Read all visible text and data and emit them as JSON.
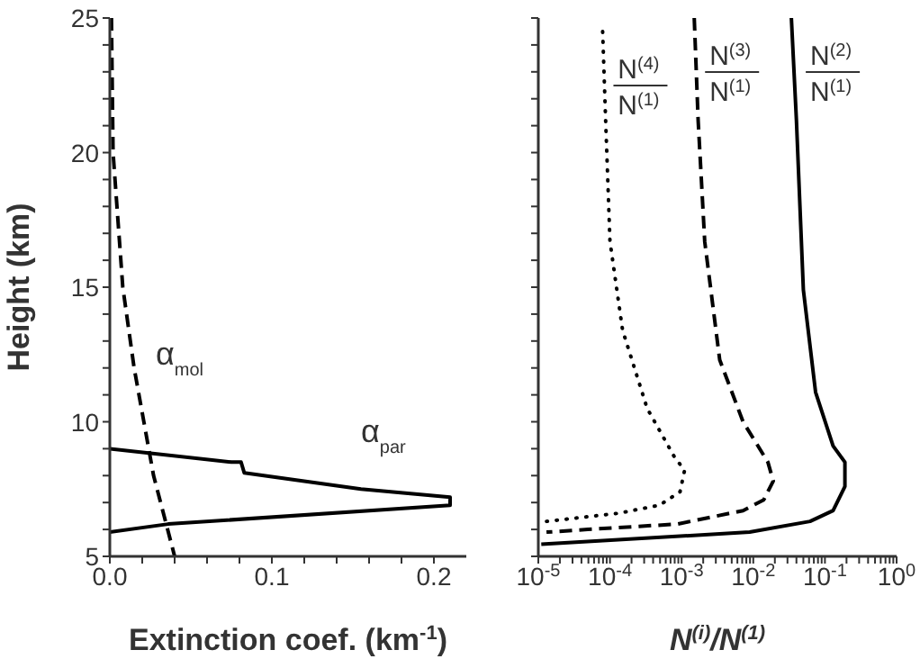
{
  "chart_data": [
    {
      "type": "line",
      "xlabel": "Extinction coef. (km$^{-1}$)",
      "ylabel": "Height (km)",
      "xlim": [
        0,
        0.22
      ],
      "xticks": [
        {
          "value": 0,
          "label": "0.0"
        },
        {
          "value": 0.02,
          "label": null
        },
        {
          "value": 0.04,
          "label": null
        },
        {
          "value": 0.06,
          "label": null
        },
        {
          "value": 0.08,
          "label": null
        },
        0.1,
        {
          "value": 0.12,
          "label": null
        },
        {
          "value": 0.14,
          "label": null
        },
        {
          "value": 0.16,
          "label": null
        },
        {
          "value": 0.18,
          "label": null
        },
        0.2
      ],
      "ylim": [
        5,
        25
      ],
      "yticks": [
        5,
        {
          "value": 6,
          "label": null
        },
        {
          "value": 7,
          "label": null
        },
        {
          "value": 8,
          "label": null
        },
        {
          "value": 9,
          "label": null
        },
        10,
        {
          "value": 11,
          "label": null
        },
        {
          "value": 12,
          "label": null
        },
        {
          "value": 13,
          "label": null
        },
        {
          "value": 14,
          "label": null
        },
        15,
        {
          "value": 16,
          "label": null
        },
        {
          "value": 17,
          "label": null
        },
        {
          "value": 18,
          "label": null
        },
        {
          "value": 19,
          "label": null
        },
        20,
        {
          "value": 21,
          "label": null
        },
        {
          "value": 22,
          "label": null
        },
        {
          "value": 23,
          "label": null
        },
        {
          "value": 24,
          "label": null
        },
        25
      ],
      "grid": false,
      "legend": false,
      "marker": "none",
      "series": [
        {
          "name": "α$_{mol}$",
          "color": "#000000",
          "line_style": "dashed",
          "x": [
            0.001,
            0.002,
            0.008,
            0.015,
            0.021,
            0.027,
            0.04
          ],
          "values": [
            25,
            20,
            15,
            12,
            10,
            8,
            5
          ]
        },
        {
          "name": "α$_{par}$",
          "color": "#000000",
          "line_style": "solid",
          "x": [
            0,
            0.075,
            0.081,
            0.083,
            0.155,
            0.21,
            0.21,
            0.036,
            0
          ],
          "values": [
            9.0,
            8.5,
            8.5,
            8.1,
            7.5,
            7.2,
            6.9,
            6.2,
            5.9
          ]
        }
      ]
    },
    {
      "type": "line",
      "xlabel": "N$^{(i)}$/N$^{(1)}$",
      "log": "x",
      "xlim": [
        1e-05,
        1
      ],
      "xticks": [
        {
          "value": 1e-05,
          "label": "10$^{-5}$"
        },
        {
          "value": 2e-05,
          "label": null
        },
        {
          "value": 3e-05,
          "label": null
        },
        {
          "value": 4e-05,
          "label": null
        },
        {
          "value": 5e-05,
          "label": null
        },
        {
          "value": 6e-05,
          "label": null
        },
        {
          "value": 7e-05,
          "label": null
        },
        {
          "value": 8e-05,
          "label": null
        },
        {
          "value": 9e-05,
          "label": null
        },
        {
          "value": 0.0001,
          "label": "10$^{-4}$"
        },
        {
          "value": 0.0002,
          "label": null
        },
        {
          "value": 0.0003,
          "label": null
        },
        {
          "value": 0.0004,
          "label": null
        },
        {
          "value": 0.0005,
          "label": null
        },
        {
          "value": 0.0006,
          "label": null
        },
        {
          "value": 0.0007,
          "label": null
        },
        {
          "value": 0.0008,
          "label": null
        },
        {
          "value": 0.0009,
          "label": null
        },
        {
          "value": 0.001,
          "label": "10$^{-3}$"
        },
        {
          "value": 0.002,
          "label": null
        },
        {
          "value": 0.003,
          "label": null
        },
        {
          "value": 0.004,
          "label": null
        },
        {
          "value": 0.005,
          "label": null
        },
        {
          "value": 0.006,
          "label": null
        },
        {
          "value": 0.007,
          "label": null
        },
        {
          "value": 0.008,
          "label": null
        },
        {
          "value": 0.009,
          "label": null
        },
        {
          "value": 0.01,
          "label": "10$^{-2}$"
        },
        {
          "value": 0.02,
          "label": null
        },
        {
          "value": 0.03,
          "label": null
        },
        {
          "value": 0.04,
          "label": null
        },
        {
          "value": 0.05,
          "label": null
        },
        {
          "value": 0.06,
          "label": null
        },
        {
          "value": 0.07,
          "label": null
        },
        {
          "value": 0.08,
          "label": null
        },
        {
          "value": 0.09,
          "label": null
        },
        {
          "value": 0.1,
          "label": "10$^{-1}$"
        },
        {
          "value": 0.2,
          "label": null
        },
        {
          "value": 0.3,
          "label": null
        },
        {
          "value": 0.4,
          "label": null
        },
        {
          "value": 0.5,
          "label": null
        },
        {
          "value": 0.6,
          "label": null
        },
        {
          "value": 0.7,
          "label": null
        },
        {
          "value": 0.8,
          "label": null
        },
        {
          "value": 0.9,
          "label": null
        },
        {
          "value": 1,
          "label": "10$^{0}$"
        }
      ],
      "ylim": [
        5,
        25
      ],
      "yticks": [
        5,
        {
          "value": 6,
          "label": null
        },
        {
          "value": 7,
          "label": null
        },
        {
          "value": 8,
          "label": null
        },
        {
          "value": 9,
          "label": null
        },
        10,
        {
          "value": 11,
          "label": null
        },
        {
          "value": 12,
          "label": null
        },
        {
          "value": 13,
          "label": null
        },
        {
          "value": 14,
          "label": null
        },
        15,
        {
          "value": 16,
          "label": null
        },
        {
          "value": 17,
          "label": null
        },
        {
          "value": 18,
          "label": null
        },
        {
          "value": 19,
          "label": null
        },
        20,
        {
          "value": 21,
          "label": null
        },
        {
          "value": 22,
          "label": null
        },
        {
          "value": 23,
          "label": null
        },
        {
          "value": 24,
          "label": null
        },
        25
      ],
      "tick_labels": "x",
      "grid": false,
      "legend": false,
      "marker": "none",
      "series": [
        {
          "name": "N$^{(4)}$ N$^{(1)}$",
          "color": "#000000",
          "line_style": "dotted",
          "x": [
            7.9e-05,
            8.7e-05,
            0.0001,
            0.00015,
            0.00033,
            0.00079,
            0.0011,
            0.00095,
            0.00049,
            0.00013,
            1.3e-05
          ],
          "values": [
            24.5,
            21.2,
            16.7,
            13.4,
            10.5,
            8.7,
            8.2,
            7.4,
            6.9,
            6.6,
            6.3
          ]
        },
        {
          "name": "N$^{(3)}$ N$^{(1)}$",
          "color": "#000000",
          "line_style": "dashed",
          "x": [
            0.0015,
            0.0017,
            0.0021,
            0.0034,
            0.0072,
            0.016,
            0.019,
            0.014,
            0.0072,
            0.00087,
            4.9e-05,
            1.3e-05
          ],
          "values": [
            25,
            21.2,
            16.7,
            12.3,
            10.0,
            8.5,
            7.8,
            7.1,
            6.7,
            6.2,
            6.0,
            5.9
          ]
        },
        {
          "name": "N$^{(2)}$ N$^{(1)}$",
          "color": "#000000",
          "line_style": "solid",
          "x": [
            0.034,
            0.04,
            0.05,
            0.074,
            0.13,
            0.19,
            0.19,
            0.13,
            0.062,
            0.0089,
            1.1e-05
          ],
          "values": [
            25,
            21.2,
            14.9,
            11.1,
            9.1,
            8.5,
            7.6,
            6.7,
            6.3,
            5.9,
            5.45
          ]
        }
      ]
    }
  ]
}
